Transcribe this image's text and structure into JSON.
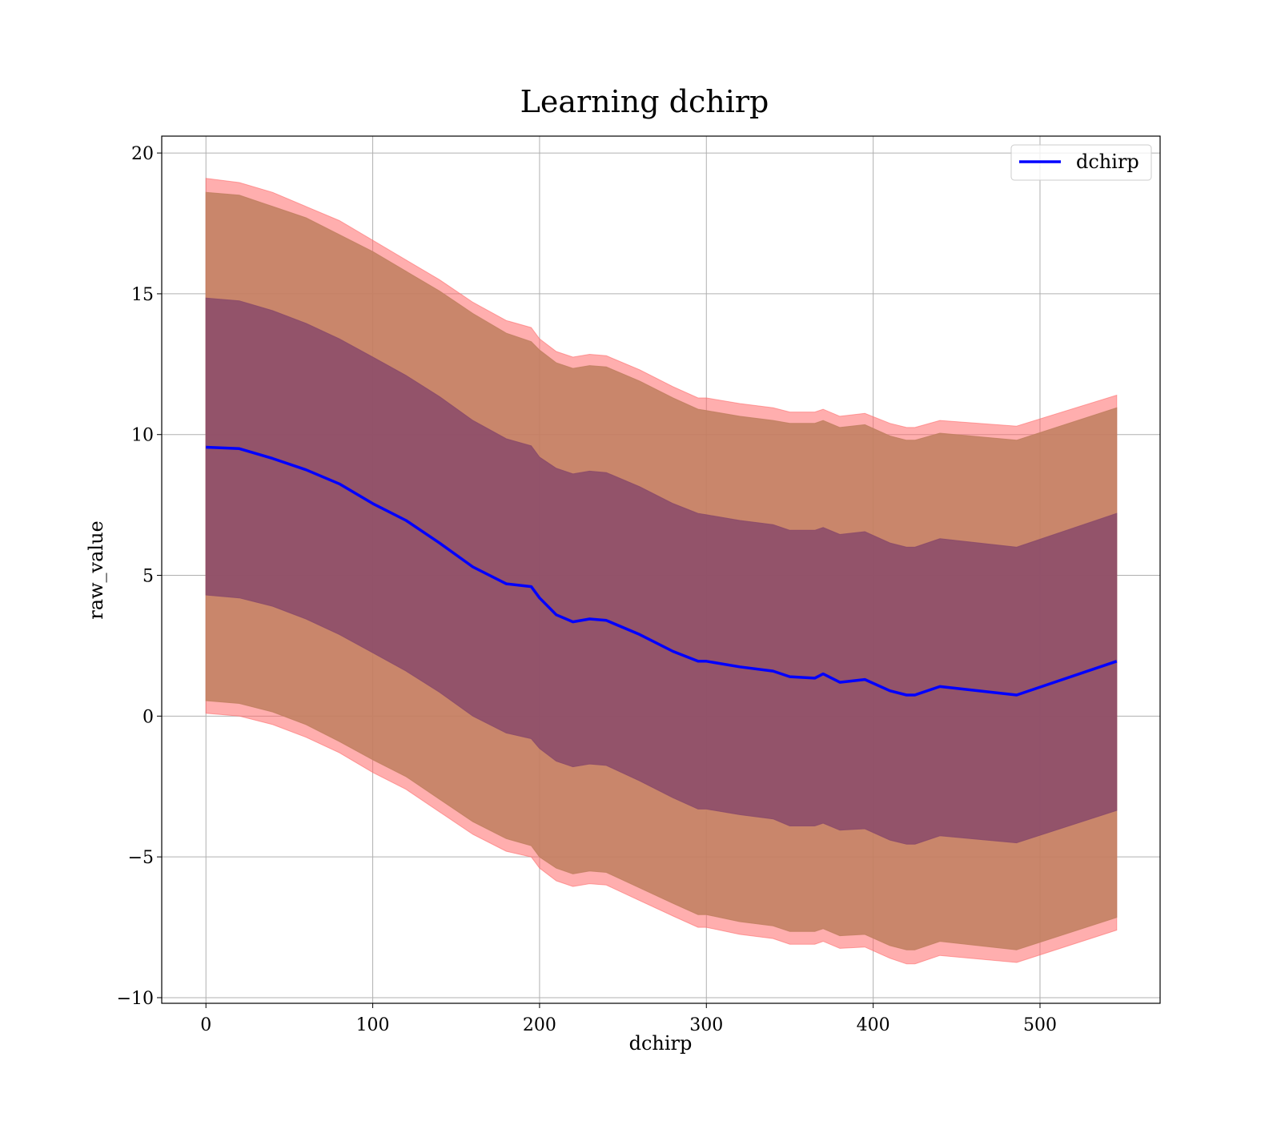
{
  "chart_data": {
    "type": "line",
    "title": "Learning dchirp",
    "xlabel": "dchirp",
    "ylabel": "raw_value",
    "xlim": [
      -26.5,
      572
    ],
    "ylim": [
      -10.2,
      20.6
    ],
    "xticks": [
      0,
      100,
      200,
      300,
      400,
      500
    ],
    "yticks": [
      -10,
      -5,
      0,
      5,
      10,
      15,
      20
    ],
    "xtick_labels": [
      "0",
      "100",
      "200",
      "300",
      "400",
      "500"
    ],
    "ytick_labels": [
      "−10",
      "−5",
      "0",
      "5",
      "10",
      "15",
      "20"
    ],
    "grid": true,
    "legend": {
      "placement": "top-right",
      "entries": [
        "dchirp"
      ]
    },
    "x": [
      0,
      20,
      40,
      60,
      80,
      100,
      120,
      140,
      160,
      180,
      195,
      200,
      210,
      220,
      230,
      240,
      260,
      280,
      295,
      300,
      320,
      340,
      350,
      365,
      370,
      380,
      395,
      410,
      420,
      425,
      440,
      486,
      546
    ],
    "series": [
      {
        "name": "dchirp",
        "role": "line",
        "color": "#0000ff",
        "values": [
          9.55,
          9.5,
          9.15,
          8.75,
          8.25,
          7.55,
          6.95,
          6.15,
          5.3,
          4.7,
          4.6,
          4.2,
          3.6,
          3.35,
          3.45,
          3.4,
          2.9,
          2.3,
          1.95,
          1.95,
          1.75,
          1.6,
          1.4,
          1.35,
          1.5,
          1.2,
          1.3,
          0.9,
          0.75,
          0.75,
          1.05,
          0.75,
          1.95
        ]
      },
      {
        "name": "",
        "role": "band-outer",
        "color": "#ff6b6b",
        "upper": [
          19.1,
          18.95,
          18.6,
          18.1,
          17.6,
          16.9,
          16.2,
          15.5,
          14.7,
          14.05,
          13.8,
          13.4,
          12.95,
          12.75,
          12.85,
          12.8,
          12.3,
          11.7,
          11.3,
          11.3,
          11.1,
          10.95,
          10.8,
          10.8,
          10.9,
          10.65,
          10.75,
          10.4,
          10.25,
          10.25,
          10.5,
          10.3,
          11.4
        ],
        "lower": [
          0.1,
          0.0,
          -0.3,
          -0.75,
          -1.3,
          -2.0,
          -2.6,
          -3.4,
          -4.2,
          -4.8,
          -5.0,
          -5.4,
          -5.85,
          -6.05,
          -5.95,
          -6.0,
          -6.55,
          -7.1,
          -7.5,
          -7.5,
          -7.75,
          -7.9,
          -8.1,
          -8.1,
          -8.0,
          -8.25,
          -8.2,
          -8.6,
          -8.8,
          -8.8,
          -8.5,
          -8.75,
          -7.6
        ]
      },
      {
        "name": "",
        "role": "band-mid",
        "color": "#bf7f5f",
        "upper": [
          18.6,
          18.5,
          18.1,
          17.7,
          17.1,
          16.5,
          15.8,
          15.1,
          14.3,
          13.6,
          13.3,
          13.0,
          12.55,
          12.35,
          12.45,
          12.4,
          11.9,
          11.3,
          10.9,
          10.85,
          10.65,
          10.5,
          10.4,
          10.4,
          10.5,
          10.25,
          10.35,
          9.95,
          9.8,
          9.8,
          10.05,
          9.8,
          10.95
        ],
        "lower": [
          0.55,
          0.45,
          0.15,
          -0.3,
          -0.9,
          -1.55,
          -2.15,
          -2.95,
          -3.75,
          -4.35,
          -4.6,
          -5.0,
          -5.4,
          -5.6,
          -5.5,
          -5.55,
          -6.1,
          -6.65,
          -7.05,
          -7.05,
          -7.3,
          -7.45,
          -7.65,
          -7.65,
          -7.55,
          -7.8,
          -7.75,
          -8.15,
          -8.3,
          -8.3,
          -8.0,
          -8.3,
          -7.15
        ]
      },
      {
        "name": "",
        "role": "band-inner",
        "color": "#8a4a6a",
        "upper": [
          14.85,
          14.75,
          14.4,
          13.95,
          13.4,
          12.75,
          12.1,
          11.35,
          10.5,
          9.85,
          9.6,
          9.2,
          8.8,
          8.6,
          8.7,
          8.65,
          8.15,
          7.55,
          7.2,
          7.15,
          6.95,
          6.8,
          6.6,
          6.6,
          6.7,
          6.45,
          6.55,
          6.15,
          6.0,
          6.0,
          6.3,
          6.0,
          7.2
        ],
        "lower": [
          4.3,
          4.2,
          3.9,
          3.45,
          2.9,
          2.25,
          1.6,
          0.85,
          0.0,
          -0.6,
          -0.8,
          -1.15,
          -1.6,
          -1.8,
          -1.7,
          -1.75,
          -2.3,
          -2.9,
          -3.3,
          -3.3,
          -3.5,
          -3.65,
          -3.9,
          -3.9,
          -3.8,
          -4.05,
          -4.0,
          -4.4,
          -4.55,
          -4.55,
          -4.25,
          -4.5,
          -3.35
        ]
      }
    ]
  }
}
